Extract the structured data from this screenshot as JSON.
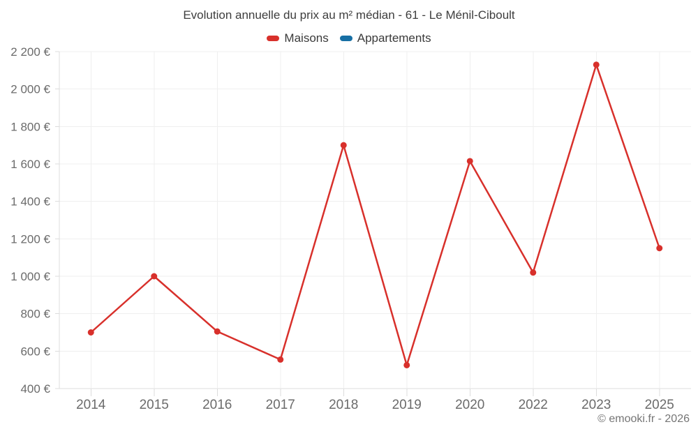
{
  "page": {
    "background": "#ffffff",
    "footer": "© emooki.fr - 2026"
  },
  "chart_data": {
    "type": "line",
    "title": "Evolution annuelle du prix au m² médian - 61 - Le Ménil-Ciboult",
    "categories": [
      "2014",
      "2015",
      "2016",
      "2017",
      "2018",
      "2019",
      "2020",
      "2022",
      "2023",
      "2025"
    ],
    "series": [
      {
        "name": "Maisons",
        "color": "#d8302b",
        "values": [
          700,
          1000,
          705,
          555,
          1700,
          525,
          1615,
          1020,
          2130,
          1150
        ]
      },
      {
        "name": "Appartements",
        "color": "#176fa4",
        "values": []
      }
    ],
    "ylim": [
      400,
      2200
    ],
    "ytick_step": 200,
    "ytick_labels": [
      "400 €",
      "600 €",
      "800 €",
      "1 000 €",
      "1 200 €",
      "1 400 €",
      "1 600 €",
      "1 800 €",
      "2 000 €",
      "2 200 €"
    ],
    "grid": true,
    "legend_position": "top",
    "marker_radius": 4.5,
    "line_width": 2.5
  }
}
